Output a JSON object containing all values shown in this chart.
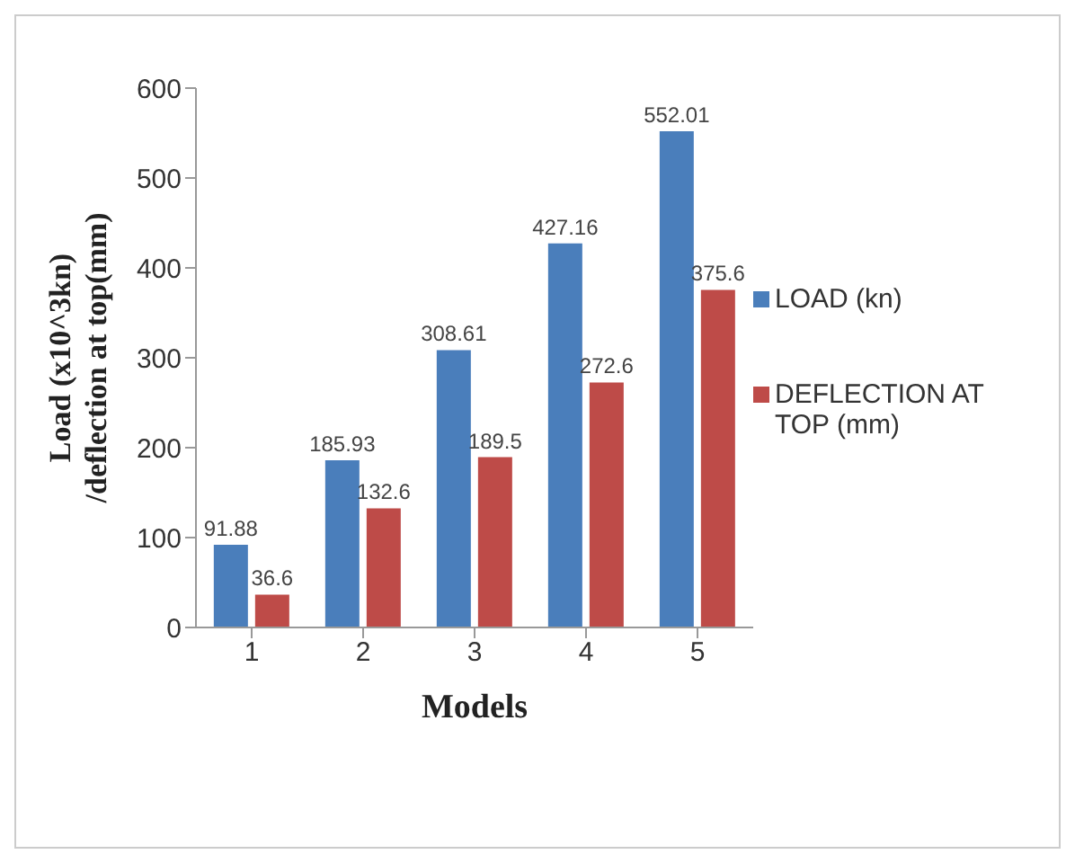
{
  "chart_data": {
    "type": "bar",
    "xlabel": "Models",
    "ylabel": "Load (x10^3kn) /deflection at top(mm)",
    "categories": [
      "1",
      "2",
      "3",
      "4",
      "5"
    ],
    "series": [
      {
        "name": "LOAD (kn)",
        "color": "#4a7ebb",
        "values": [
          91.88,
          185.93,
          308.61,
          427.16,
          552.01
        ]
      },
      {
        "name": "DEFLECTION AT TOP (mm)",
        "color": "#be4b48",
        "values": [
          36.6,
          132.6,
          189.5,
          272.6,
          375.6
        ]
      }
    ],
    "ylim": [
      0,
      600
    ],
    "yticks": [
      0,
      100,
      200,
      300,
      400,
      500,
      600
    ],
    "data_labels": true,
    "legend": "right",
    "grid": false
  }
}
